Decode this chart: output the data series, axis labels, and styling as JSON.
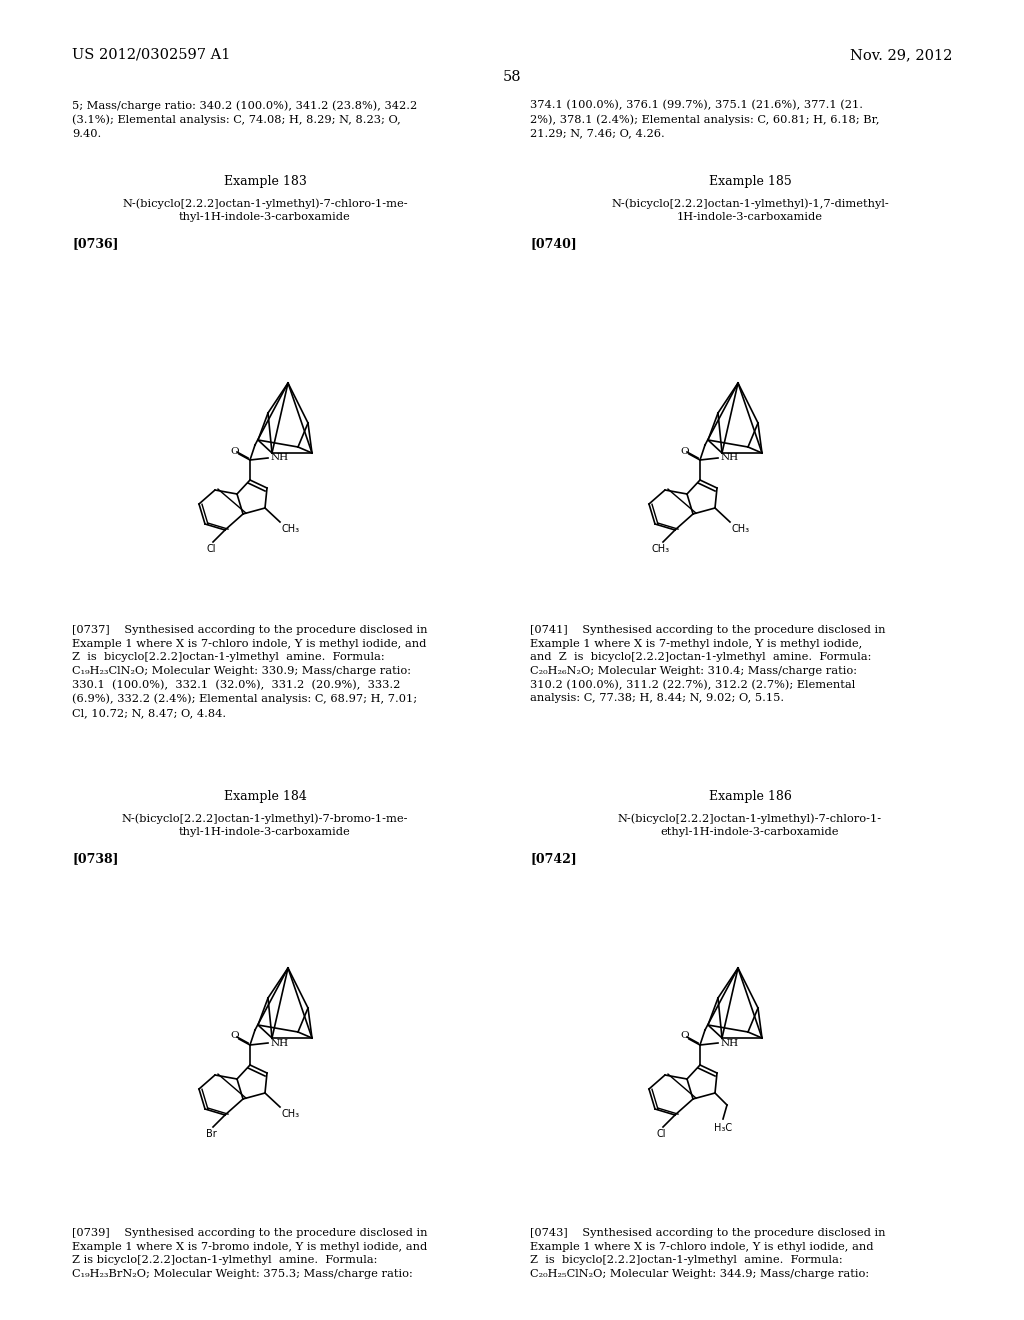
{
  "page_header_left": "US 2012/0302597 A1",
  "page_header_right": "Nov. 29, 2012",
  "page_number": "58",
  "background_color": "#ffffff",
  "text_color": "#000000",
  "font_size_header": 10.5,
  "font_size_body": 8.2,
  "font_size_example": 9,
  "font_size_bracket": 9,
  "top_text_left": "5; Mass/charge ratio: 340.2 (100.0%), 341.2 (23.8%), 342.2\n(3.1%); Elemental analysis: C, 74.08; H, 8.29; N, 8.23; O,\n9.40.",
  "top_text_right": "374.1 (100.0%), 376.1 (99.7%), 375.1 (21.6%), 377.1 (21.\n2%), 378.1 (2.4%); Elemental analysis: C, 60.81; H, 6.18; Br,\n21.29; N, 7.46; O, 4.26.",
  "example183_title": "Example 183",
  "example183_name": "N-(bicyclo[2.2.2]octan-1-ylmethyl)-7-chloro-1-me-\nthyl-1H-indole-3-carboxamide",
  "example183_bracket": "[0736]",
  "example183_text": "[0737]    Synthesised according to the procedure disclosed in\nExample 1 where X is 7-chloro indole, Y is methyl iodide, and\nZ  is  bicyclo[2.2.2]octan-1-ylmethyl  amine.  Formula:\nC₁₉H₂₃ClN₂O; Molecular Weight: 330.9; Mass/charge ratio:\n330.1  (100.0%),  332.1  (32.0%),  331.2  (20.9%),  333.2\n(6.9%), 332.2 (2.4%); Elemental analysis: C, 68.97; H, 7.01;\nCl, 10.72; N, 8.47; O, 4.84.",
  "example184_title": "Example 184",
  "example184_name": "N-(bicyclo[2.2.2]octan-1-ylmethyl)-7-bromo-1-me-\nthyl-1H-indole-3-carboxamide",
  "example184_bracket": "[0738]",
  "example184_text": "[0739]    Synthesised according to the procedure disclosed in\nExample 1 where X is 7-bromo indole, Y is methyl iodide, and\nZ is bicyclo[2.2.2]octan-1-ylmethyl  amine.  Formula:\nC₁₉H₂₃BrN₂O; Molecular Weight: 375.3; Mass/charge ratio:",
  "example185_title": "Example 185",
  "example185_name": "N-(bicyclo[2.2.2]octan-1-ylmethyl)-1,7-dimethyl-\n1H-indole-3-carboxamide",
  "example185_bracket": "[0740]",
  "example185_text": "[0741]    Synthesised according to the procedure disclosed in\nExample 1 where X is 7-methyl indole, Y is methyl iodide,\nand  Z  is  bicyclo[2.2.2]octan-1-ylmethyl  amine.  Formula:\nC₂₀H₂₆N₂O; Molecular Weight: 310.4; Mass/charge ratio:\n310.2 (100.0%), 311.2 (22.7%), 312.2 (2.7%); Elemental\nanalysis: C, 77.38; H, 8.44; N, 9.02; O, 5.15.",
  "example186_title": "Example 186",
  "example186_name": "N-(bicyclo[2.2.2]octan-1-ylmethyl)-7-chloro-1-\nethyl-1H-indole-3-carboxamide",
  "example186_bracket": "[0742]",
  "example186_text": "[0743]    Synthesised according to the procedure disclosed in\nExample 1 where X is 7-chloro indole, Y is ethyl iodide, and\nZ  is  bicyclo[2.2.2]octan-1-ylmethyl  amine.  Formula:\nC₂₀H₂₅ClN₂O; Molecular Weight: 344.9; Mass/charge ratio:"
}
